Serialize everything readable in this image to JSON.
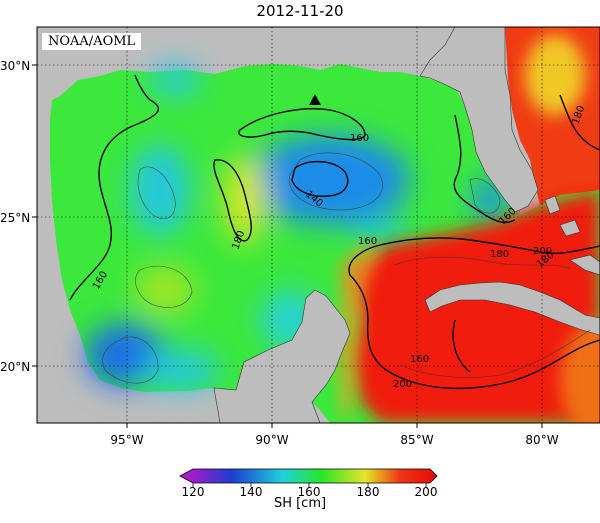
{
  "title": "2012-11-20",
  "credit": "NOAA/AOML",
  "colorbar": {
    "label": "SH [cm]",
    "ticks": [
      "120",
      "140",
      "160",
      "180",
      "200"
    ]
  },
  "axes": {
    "lat_ticks": [
      "30°N",
      "25°N",
      "20°N"
    ],
    "lon_ticks": [
      "95°W",
      "90°W",
      "85°W",
      "80°W"
    ]
  },
  "contour_labels": [
    "160",
    "160",
    "160",
    "140",
    "180",
    "180",
    "160",
    "180",
    "160",
    "180",
    "200",
    "200"
  ],
  "markers": [
    {
      "name": "triangle-marker",
      "lon": -88.3,
      "lat": 28.8
    }
  ],
  "colors": {
    "land": "#bdbdbd",
    "cold": "#1e5aeb",
    "mid": "#28e628",
    "warm": "#f01e0a",
    "colorbar_stops": [
      "#c814c8",
      "#1e3cd2",
      "#1ed2dc",
      "#28e628",
      "#e6e628",
      "#f03214",
      "#e60a0a"
    ]
  }
}
